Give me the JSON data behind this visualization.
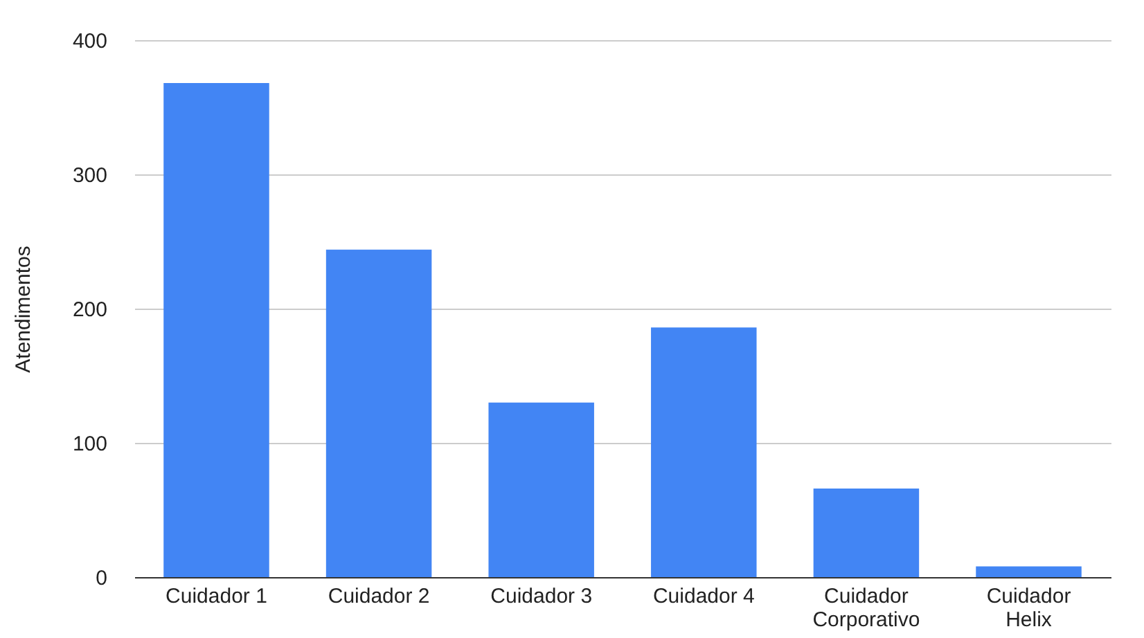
{
  "chart_data": {
    "type": "bar",
    "ylabel": "Atendimentos",
    "categories": [
      "Cuidador 1",
      "Cuidador 2",
      "Cuidador 3",
      "Cuidador 4",
      "Cuidador Corporativo",
      "Cuidador Helix"
    ],
    "values": [
      368,
      244,
      130,
      186,
      66,
      8
    ],
    "color": "#4285f4",
    "ylim": [
      0,
      400
    ],
    "yticks": [
      0,
      100,
      200,
      300,
      400
    ],
    "grid": "y"
  }
}
